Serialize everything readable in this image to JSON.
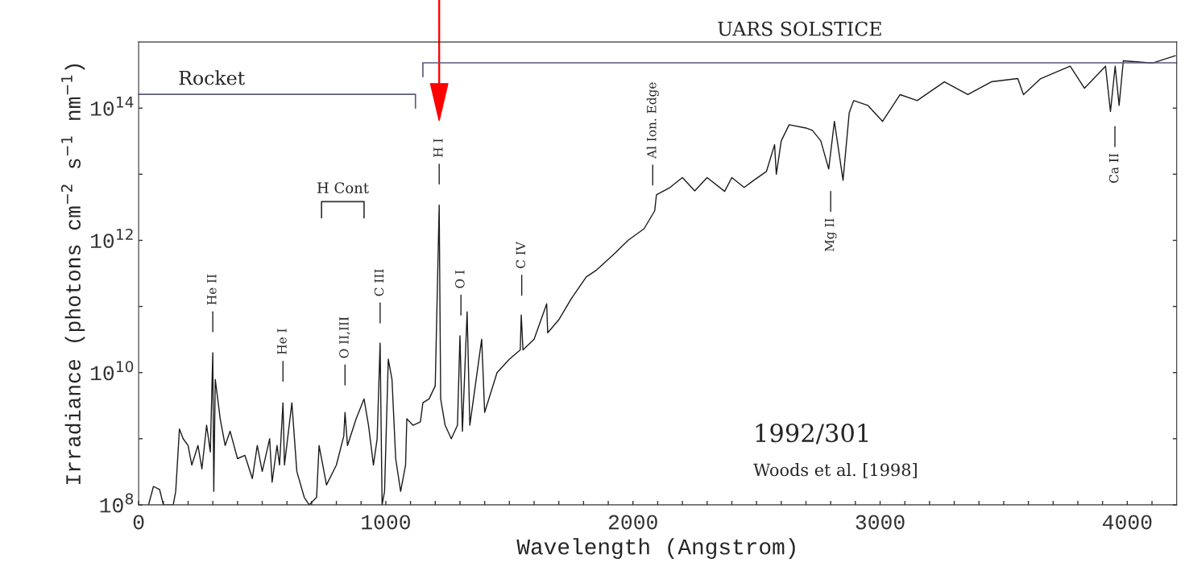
{
  "chart_data": {
    "type": "line",
    "xlabel": "Wavelength (Angstrom)",
    "ylabel": "Irradiance (photons cm$^{−2}$ s$^{−1}$ nm$^{−1}$)",
    "log": "y",
    "grid": false,
    "legend": false,
    "xlim": [
      0,
      4200
    ],
    "ylim": [
      100000000.0,
      1000000000000000.0
    ],
    "xticks": [
      0,
      {
        "value": 100,
        "label": null
      },
      {
        "value": 200,
        "label": null
      },
      {
        "value": 300,
        "label": null
      },
      {
        "value": 400,
        "label": null
      },
      {
        "value": 500,
        "label": null
      },
      {
        "value": 600,
        "label": null
      },
      {
        "value": 700,
        "label": null
      },
      {
        "value": 800,
        "label": null
      },
      {
        "value": 900,
        "label": null
      },
      1000,
      {
        "value": 1100,
        "label": null
      },
      {
        "value": 1200,
        "label": null
      },
      {
        "value": 1300,
        "label": null
      },
      {
        "value": 1400,
        "label": null
      },
      {
        "value": 1500,
        "label": null
      },
      {
        "value": 1600,
        "label": null
      },
      {
        "value": 1700,
        "label": null
      },
      {
        "value": 1800,
        "label": null
      },
      {
        "value": 1900,
        "label": null
      },
      2000,
      {
        "value": 2100,
        "label": null
      },
      {
        "value": 2200,
        "label": null
      },
      {
        "value": 2300,
        "label": null
      },
      {
        "value": 2400,
        "label": null
      },
      {
        "value": 2500,
        "label": null
      },
      {
        "value": 2600,
        "label": null
      },
      {
        "value": 2700,
        "label": null
      },
      {
        "value": 2800,
        "label": null
      },
      {
        "value": 2900,
        "label": null
      },
      3000,
      {
        "value": 3100,
        "label": null
      },
      {
        "value": 3200,
        "label": null
      },
      {
        "value": 3300,
        "label": null
      },
      {
        "value": 3400,
        "label": null
      },
      {
        "value": 3500,
        "label": null
      },
      {
        "value": 3600,
        "label": null
      },
      {
        "value": 3700,
        "label": null
      },
      {
        "value": 3800,
        "label": null
      },
      {
        "value": 3900,
        "label": null
      },
      4000,
      {
        "value": 4100,
        "label": null
      }
    ],
    "yticks": [
      {
        "value": 100000000.0,
        "label": "10$^{8}$"
      },
      {
        "value": 1000000000.0,
        "label": null
      },
      {
        "value": 10000000000.0,
        "label": "10$^{10}$"
      },
      {
        "value": 100000000000.0,
        "label": null
      },
      {
        "value": 1000000000000.0,
        "label": "10$^{12}$"
      },
      {
        "value": 10000000000000.0,
        "label": null
      },
      {
        "value": 100000000000000.0,
        "label": "10$^{14}$"
      }
    ],
    "x": [
      40,
      60,
      85,
      100,
      140,
      150,
      165,
      180,
      200,
      215,
      240,
      256,
      275,
      290,
      300,
      304,
      310,
      330,
      350,
      370,
      400,
      430,
      460,
      480,
      500,
      530,
      540,
      560,
      570,
      584,
      590,
      620,
      640,
      670,
      690,
      720,
      730,
      760,
      800,
      830,
      835,
      845,
      880,
      912,
      930,
      950,
      965,
      977,
      985,
      995,
      1010,
      1025,
      1040,
      1060,
      1080,
      1085,
      1110,
      1140,
      1150,
      1175,
      1200,
      1216,
      1222,
      1240,
      1265,
      1290,
      1300,
      1310,
      1329,
      1340,
      1388,
      1400,
      1450,
      1500,
      1544,
      1548,
      1555,
      1600,
      1651,
      1655,
      1700,
      1750,
      1811,
      1850,
      1925,
      1980,
      2045,
      2088,
      2095,
      2150,
      2200,
      2250,
      2300,
      2371,
      2400,
      2450,
      2489,
      2540,
      2573,
      2580,
      2600,
      2632,
      2700,
      2726,
      2760,
      2792,
      2815,
      2850,
      2875,
      2893,
      2950,
      3010,
      3081,
      3150,
      3260,
      3355,
      3450,
      3557,
      3580,
      3650,
      3769,
      3827,
      3912,
      3932,
      3951,
      3967,
      3984,
      4101,
      4195
    ],
    "series": [
      {
        "color": "#1a1a1a",
        "values": [
          100000000.0,
          190000000.0,
          170000000.0,
          100000000.0,
          100000000.0,
          160000000.0,
          1400000000.0,
          1000000000.0,
          790000000.0,
          400000000.0,
          790000000.0,
          350000000.0,
          1600000000.0,
          630000000.0,
          20000000000.0,
          160000000.0,
          7900000000.0,
          2000000000.0,
          790000000.0,
          1300000000.0,
          500000000.0,
          560000000.0,
          250000000.0,
          790000000.0,
          320000000.0,
          1000000000.0,
          220000000.0,
          790000000.0,
          400000000.0,
          3500000000.0,
          400000000.0,
          3500000000.0,
          320000000.0,
          130000000.0,
          100000000.0,
          130000000.0,
          790000000.0,
          200000000.0,
          400000000.0,
          1100000000.0,
          2500000000.0,
          790000000.0,
          2000000000.0,
          4000000000.0,
          1600000000.0,
          400000000.0,
          1000000000.0,
          28000000000.0,
          100000000.0,
          160000000.0,
          16000000000.0,
          7900000000.0,
          500000000.0,
          160000000.0,
          400000000.0,
          2000000000.0,
          1600000000.0,
          1800000000.0,
          3500000000.0,
          4000000000.0,
          6300000000.0,
          3400000000000.0,
          4000000000.0,
          1600000000.0,
          1000000000.0,
          1600000000.0,
          36000000000.0,
          1300000000.0,
          83000000000.0,
          1600000000.0,
          32000000000.0,
          2500000000.0,
          10000000000.0,
          16000000000.0,
          22000000000.0,
          74000000000.0,
          22000000000.0,
          32000000000.0,
          110000000000.0,
          40000000000.0,
          63000000000.0,
          130000000000.0,
          280000000000.0,
          350000000000.0,
          630000000000.0,
          1000000000000.0,
          1500000000000.0,
          2800000000000.0,
          4900000000000.0,
          6300000000000.0,
          8900000000000.0,
          5600000000000.0,
          8900000000000.0,
          5500000000000.0,
          8900000000000.0,
          6300000000000.0,
          8100000000000.0,
          11000000000000.0,
          28000000000000.0,
          10000000000000.0,
          32000000000000.0,
          56000000000000.0,
          50000000000000.0,
          46000000000000.0,
          32000000000000.0,
          12000000000000.0,
          63000000000000.0,
          8100000000000.0,
          85000000000000.0,
          130000000000000.0,
          110000000000000.0,
          63000000000000.0,
          160000000000000.0,
          130000000000000.0,
          250000000000000.0,
          160000000000000.0,
          250000000000000.0,
          280000000000000.0,
          160000000000000.0,
          280000000000000.0,
          430000000000000.0,
          200000000000000.0,
          430000000000000.0,
          89000000000000.0,
          430000000000000.0,
          110000000000000.0,
          520000000000000.0,
          480000000000000.0,
          620000000000000.0
        ]
      }
    ],
    "annotations": [
      "Rocket",
      "UARS SOLSTICE",
      "H Cont",
      "He II",
      "He I",
      "O II,III",
      "C III",
      "H I",
      "O I",
      "C IV",
      "Al Ion. Edge",
      "Mg II",
      "Ca II",
      "1992/301",
      "Woods et al. [1998]"
    ]
  }
}
